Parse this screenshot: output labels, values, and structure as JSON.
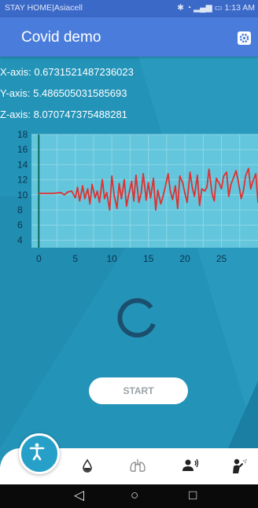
{
  "status_bar": {
    "carrier": "STAY HOME|Asiacell",
    "time": "1:13 AM"
  },
  "app": {
    "title": "Covid demo"
  },
  "sensor": {
    "x_axis": "X-axis: 0.6731521487236023",
    "y_axis": "Y-axis: 5.486505031585693",
    "z_axis": "Z-axis: 8.070747375488281"
  },
  "chart_data": {
    "type": "line",
    "title": "",
    "xlabel": "",
    "ylabel": "",
    "xlim": [
      -1,
      30
    ],
    "ylim": [
      3,
      18
    ],
    "xticks": [
      0,
      5,
      10,
      15,
      20,
      25
    ],
    "yticks": [
      4,
      6,
      8,
      10,
      12,
      14,
      16,
      18
    ],
    "grid": true,
    "series": [
      {
        "color": "#e03030",
        "x": [
          0,
          1,
          2,
          3,
          3.5,
          4,
          4.5,
          5,
          5.3,
          5.6,
          6,
          6.3,
          6.7,
          7,
          7.3,
          7.7,
          8,
          8.3,
          8.7,
          9,
          9.3,
          9.7,
          10,
          10.3,
          10.7,
          11,
          11.3,
          11.7,
          12,
          12.3,
          12.7,
          13,
          13.3,
          13.7,
          14,
          14.3,
          14.7,
          15,
          15.3,
          15.7,
          16,
          16.3,
          16.7,
          17,
          17.3,
          17.7,
          18,
          18.3,
          18.7,
          19,
          19.3,
          19.7,
          20,
          20.3,
          20.7,
          21,
          21.3,
          21.7,
          22,
          22.3,
          22.7,
          23,
          23.3,
          23.7,
          24,
          24.3,
          24.7,
          25,
          25.3,
          25.7,
          26,
          26.3,
          26.7,
          27,
          27.3,
          27.7,
          28,
          28.3,
          28.7,
          29,
          29.3,
          29.7,
          30
        ],
        "y": [
          10.2,
          10.2,
          10.2,
          10.3,
          10.0,
          10.4,
          10.5,
          9.6,
          11.0,
          9.2,
          11.2,
          9.5,
          10.8,
          8.8,
          11.4,
          9.6,
          10.5,
          9.0,
          12.0,
          9.5,
          10.3,
          8.0,
          12.5,
          10.0,
          8.2,
          11.5,
          9.5,
          12.0,
          8.5,
          10.0,
          11.8,
          9.2,
          12.6,
          9.0,
          10.2,
          12.8,
          9.3,
          11.6,
          9.6,
          12.2,
          8.0,
          10.6,
          8.8,
          9.8,
          11.0,
          12.8,
          10.5,
          9.4,
          11.2,
          8.2,
          12.5,
          11.6,
          10.2,
          9.0,
          13.0,
          11.0,
          9.8,
          12.6,
          8.6,
          10.8,
          10.5,
          11.0,
          13.4,
          10.2,
          9.2,
          12.2,
          11.5,
          10.8,
          12.5,
          13.0,
          9.8,
          11.4,
          12.4,
          13.2,
          11.8,
          9.5,
          10.5,
          12.5,
          13.5,
          10.8,
          11.8,
          12.8,
          9.0
        ]
      }
    ]
  },
  "buttons": {
    "start": "START"
  },
  "nav": {
    "items": [
      "accessibility-icon",
      "water-drop-icon",
      "lungs-icon",
      "voice-person-icon",
      "cough-person-icon"
    ]
  },
  "colors": {
    "accent": "#4a7ddb",
    "background": "#2393b7",
    "series": "#e03030"
  }
}
